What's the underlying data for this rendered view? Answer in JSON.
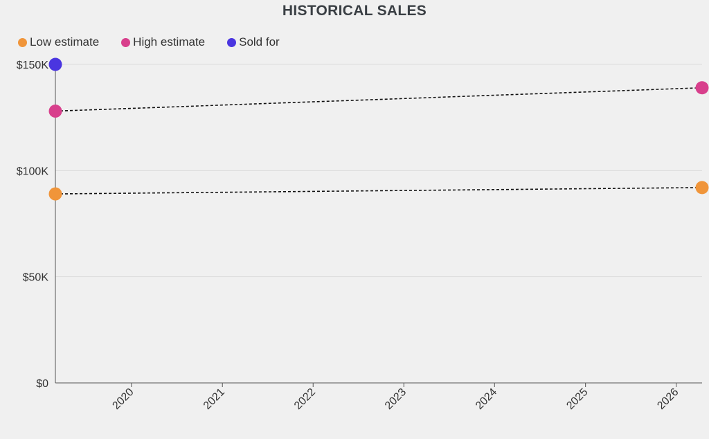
{
  "chart_data": {
    "type": "scatter",
    "title": "HISTORICAL SALES",
    "xlabel": "",
    "ylabel": "",
    "x_ticks": [
      "2020",
      "2021",
      "2022",
      "2023",
      "2024",
      "2025",
      "2026"
    ],
    "y_ticks": [
      "$0",
      "$50K",
      "$100K",
      "$150K"
    ],
    "y_tick_values": [
      0,
      50000,
      100000,
      150000
    ],
    "xlim": [
      "2019-03-01",
      "2026-04-15"
    ],
    "ylim": [
      0,
      150000
    ],
    "grid": true,
    "legend": "top-left",
    "series": [
      {
        "name": "Low estimate",
        "color": "#f0953a",
        "points": [
          {
            "date": "2019-03-01",
            "value": 89000
          },
          {
            "date": "2026-04-15",
            "value": 92000
          }
        ],
        "connect": "dashed"
      },
      {
        "name": "High estimate",
        "color": "#d83f8c",
        "points": [
          {
            "date": "2019-03-01",
            "value": 128000
          },
          {
            "date": "2026-04-15",
            "value": 139000
          }
        ],
        "connect": "dashed"
      },
      {
        "name": "Sold for",
        "color": "#4a35e0",
        "points": [
          {
            "date": "2019-03-01",
            "value": 150000
          }
        ],
        "connect": "none"
      }
    ]
  }
}
